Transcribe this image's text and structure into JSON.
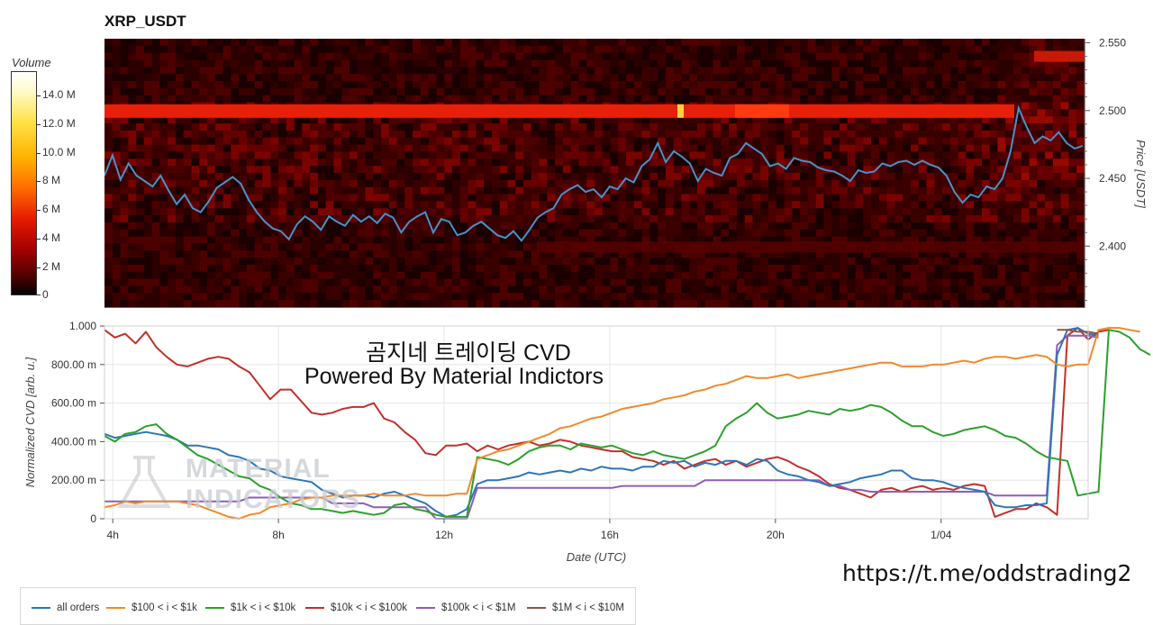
{
  "chart_data": [
    {
      "type": "heatmap",
      "title": "XRP_USDT",
      "colorbar": {
        "label": "Volume",
        "ticks": [
          "14.0 M",
          "12.0 M",
          "10.0 M",
          "8 M",
          "6 M",
          "4 M",
          "2 M",
          "0"
        ],
        "range": [
          0,
          16000000
        ]
      },
      "price_axis": {
        "label": "Price [USDT]",
        "ticks": [
          "2.550",
          "2.500",
          "2.450",
          "2.400"
        ],
        "tick_values": [
          2.55,
          2.5,
          2.45,
          2.4
        ],
        "range": [
          2.355,
          2.553
        ]
      },
      "price_line": {
        "color": "#4a90c8",
        "values": [
          2.452,
          2.467,
          2.449,
          2.461,
          2.452,
          2.448,
          2.444,
          2.452,
          2.441,
          2.431,
          2.438,
          2.428,
          2.425,
          2.433,
          2.443,
          2.447,
          2.451,
          2.446,
          2.434,
          2.425,
          2.418,
          2.413,
          2.411,
          2.405,
          2.416,
          2.422,
          2.418,
          2.412,
          2.422,
          2.418,
          2.415,
          2.423,
          2.418,
          2.422,
          2.417,
          2.424,
          2.421,
          2.41,
          2.418,
          2.422,
          2.425,
          2.41,
          2.42,
          2.418,
          2.408,
          2.41,
          2.415,
          2.418,
          2.413,
          2.408,
          2.406,
          2.411,
          2.404,
          2.412,
          2.421,
          2.425,
          2.428,
          2.438,
          2.442,
          2.445,
          2.44,
          2.442,
          2.436,
          2.444,
          2.442,
          2.45,
          2.447,
          2.459,
          2.464,
          2.476,
          2.462,
          2.47,
          2.466,
          2.461,
          2.448,
          2.457,
          2.454,
          2.452,
          2.465,
          2.468,
          2.476,
          2.472,
          2.468,
          2.459,
          2.461,
          2.457,
          2.465,
          2.463,
          2.462,
          2.458,
          2.456,
          2.455,
          2.452,
          2.448,
          2.456,
          2.454,
          2.455,
          2.461,
          2.459,
          2.462,
          2.463,
          2.46,
          2.463,
          2.46,
          2.458,
          2.452,
          2.44,
          2.432,
          2.438,
          2.436,
          2.444,
          2.442,
          2.45,
          2.47,
          2.502,
          2.488,
          2.476,
          2.481,
          2.478,
          2.484,
          2.476,
          2.472,
          2.474
        ]
      }
    },
    {
      "type": "line",
      "x_axis": {
        "label": "Date (UTC)",
        "ticks": [
          "4h",
          "8h",
          "12h",
          "16h",
          "20h",
          "1/04"
        ],
        "tick_hours": [
          4,
          8,
          12,
          16,
          20,
          24
        ],
        "range_hours": [
          3.8,
          27.55
        ]
      },
      "y_axis": {
        "label": "Normalized CVD [arb. u.]",
        "ticks": [
          "0",
          "200.00 m",
          "400.00 m",
          "600.00 m",
          "800.00 m",
          "1.000"
        ],
        "range": [
          0,
          1.0
        ]
      },
      "grid": true,
      "x_start_hour": 3.8,
      "x_step_hours": 0.25,
      "series": [
        {
          "name": "all orders",
          "color": "#2e75b6",
          "values": [
            0.44,
            0.42,
            0.43,
            0.44,
            0.45,
            0.44,
            0.43,
            0.41,
            0.38,
            0.38,
            0.37,
            0.36,
            0.33,
            0.32,
            0.3,
            0.26,
            0.25,
            0.22,
            0.21,
            0.2,
            0.19,
            0.15,
            0.13,
            0.11,
            0.12,
            0.12,
            0.11,
            0.13,
            0.14,
            0.12,
            0.1,
            0.08,
            0.04,
            0.01,
            0.02,
            0.05,
            0.18,
            0.2,
            0.2,
            0.21,
            0.22,
            0.24,
            0.23,
            0.24,
            0.25,
            0.24,
            0.26,
            0.25,
            0.27,
            0.26,
            0.26,
            0.25,
            0.27,
            0.27,
            0.3,
            0.29,
            0.3,
            0.27,
            0.29,
            0.28,
            0.3,
            0.3,
            0.28,
            0.31,
            0.3,
            0.25,
            0.23,
            0.22,
            0.2,
            0.19,
            0.17,
            0.18,
            0.19,
            0.21,
            0.22,
            0.23,
            0.25,
            0.25,
            0.21,
            0.2,
            0.2,
            0.19,
            0.17,
            0.16,
            0.15,
            0.14,
            0.07,
            0.06,
            0.06,
            0.07,
            0.07,
            0.08,
            0.85,
            0.98,
            0.99,
            0.96,
            0.95
          ]
        },
        {
          "name": "$100 < i < $1k",
          "color": "#f0892a",
          "values": [
            0.06,
            0.07,
            0.09,
            0.08,
            0.09,
            0.09,
            0.09,
            0.09,
            0.08,
            0.07,
            0.05,
            0.03,
            0.01,
            0.0,
            0.02,
            0.03,
            0.06,
            0.07,
            0.08,
            0.1,
            0.11,
            0.11,
            0.12,
            0.12,
            0.12,
            0.12,
            0.13,
            0.12,
            0.12,
            0.12,
            0.13,
            0.12,
            0.12,
            0.12,
            0.13,
            0.13,
            0.31,
            0.33,
            0.35,
            0.36,
            0.38,
            0.4,
            0.42,
            0.44,
            0.47,
            0.48,
            0.5,
            0.52,
            0.53,
            0.55,
            0.57,
            0.58,
            0.59,
            0.6,
            0.62,
            0.63,
            0.64,
            0.66,
            0.67,
            0.69,
            0.7,
            0.72,
            0.74,
            0.73,
            0.73,
            0.74,
            0.75,
            0.73,
            0.74,
            0.75,
            0.76,
            0.77,
            0.78,
            0.79,
            0.8,
            0.81,
            0.81,
            0.79,
            0.79,
            0.79,
            0.8,
            0.8,
            0.81,
            0.82,
            0.81,
            0.83,
            0.84,
            0.84,
            0.83,
            0.84,
            0.85,
            0.84,
            0.8,
            0.79,
            0.8,
            0.8,
            0.98,
            0.99,
            0.99,
            0.98,
            0.97
          ]
        },
        {
          "name": "$1k < i < $10k",
          "color": "#2ca02c",
          "values": [
            0.43,
            0.4,
            0.44,
            0.45,
            0.48,
            0.49,
            0.44,
            0.41,
            0.37,
            0.33,
            0.31,
            0.28,
            0.25,
            0.22,
            0.21,
            0.17,
            0.15,
            0.11,
            0.08,
            0.07,
            0.05,
            0.05,
            0.04,
            0.03,
            0.04,
            0.03,
            0.02,
            0.03,
            0.07,
            0.08,
            0.05,
            0.04,
            0.02,
            0.01,
            0.01,
            0.01,
            0.32,
            0.31,
            0.3,
            0.28,
            0.31,
            0.35,
            0.37,
            0.38,
            0.38,
            0.36,
            0.39,
            0.38,
            0.37,
            0.38,
            0.36,
            0.34,
            0.33,
            0.35,
            0.33,
            0.32,
            0.31,
            0.33,
            0.35,
            0.38,
            0.48,
            0.52,
            0.55,
            0.6,
            0.55,
            0.52,
            0.53,
            0.54,
            0.56,
            0.55,
            0.54,
            0.57,
            0.56,
            0.57,
            0.59,
            0.58,
            0.55,
            0.51,
            0.48,
            0.48,
            0.45,
            0.43,
            0.44,
            0.46,
            0.47,
            0.48,
            0.46,
            0.43,
            0.42,
            0.39,
            0.35,
            0.32,
            0.31,
            0.3,
            0.12,
            0.13,
            0.14,
            0.98,
            0.97,
            0.94,
            0.88,
            0.85
          ]
        },
        {
          "name": "$10k < i < $100k",
          "color": "#c0302a",
          "values": [
            0.98,
            0.94,
            0.96,
            0.91,
            0.97,
            0.89,
            0.84,
            0.8,
            0.79,
            0.81,
            0.83,
            0.84,
            0.83,
            0.79,
            0.76,
            0.69,
            0.62,
            0.67,
            0.67,
            0.61,
            0.55,
            0.54,
            0.55,
            0.57,
            0.58,
            0.58,
            0.6,
            0.52,
            0.5,
            0.45,
            0.41,
            0.34,
            0.33,
            0.38,
            0.38,
            0.39,
            0.35,
            0.38,
            0.36,
            0.38,
            0.39,
            0.4,
            0.38,
            0.39,
            0.41,
            0.4,
            0.38,
            0.37,
            0.36,
            0.35,
            0.35,
            0.32,
            0.31,
            0.3,
            0.28,
            0.3,
            0.26,
            0.28,
            0.3,
            0.31,
            0.28,
            0.3,
            0.27,
            0.29,
            0.31,
            0.32,
            0.3,
            0.27,
            0.25,
            0.22,
            0.18,
            0.16,
            0.15,
            0.13,
            0.11,
            0.15,
            0.16,
            0.14,
            0.16,
            0.17,
            0.15,
            0.16,
            0.15,
            0.17,
            0.18,
            0.17,
            0.01,
            0.03,
            0.05,
            0.05,
            0.08,
            0.06,
            0.02,
            0.95,
            0.99,
            0.93,
            0.97,
            0.98
          ]
        },
        {
          "name": "$100k < i < $1M",
          "color": "#8c5fb6",
          "values": [
            0.09,
            0.09,
            0.09,
            0.09,
            0.09,
            0.09,
            0.09,
            0.09,
            0.09,
            0.09,
            0.09,
            0.09,
            0.09,
            0.09,
            0.11,
            0.11,
            0.11,
            0.11,
            0.11,
            0.11,
            0.11,
            0.11,
            0.08,
            0.08,
            0.08,
            0.08,
            0.06,
            0.06,
            0.06,
            0.06,
            0.06,
            0.06,
            0.0,
            0.0,
            0.0,
            0.0,
            0.16,
            0.16,
            0.16,
            0.16,
            0.16,
            0.16,
            0.16,
            0.16,
            0.16,
            0.16,
            0.16,
            0.16,
            0.16,
            0.16,
            0.17,
            0.17,
            0.17,
            0.17,
            0.17,
            0.17,
            0.17,
            0.17,
            0.2,
            0.2,
            0.2,
            0.2,
            0.2,
            0.2,
            0.2,
            0.2,
            0.2,
            0.2,
            0.2,
            0.2,
            0.17,
            0.17,
            0.15,
            0.15,
            0.14,
            0.14,
            0.14,
            0.14,
            0.14,
            0.14,
            0.14,
            0.14,
            0.14,
            0.14,
            0.14,
            0.14,
            0.12,
            0.12,
            0.12,
            0.12,
            0.12,
            0.12,
            0.9,
            0.95,
            0.95,
            0.95,
            0.94
          ]
        },
        {
          "name": "$1M < i < $10M",
          "color": "#8c564b",
          "values": [
            0.98,
            0.98,
            0.97,
            0.97,
            0.96
          ]
        }
      ]
    }
  ],
  "overlay": {
    "korean_line": "곰지네 트레이딩 CVD",
    "powered_line": "Powered By Material Indictors",
    "url": "https://t.me/oddstrading2",
    "logo_lines": [
      "MATERIAL",
      "INDICATORS"
    ]
  }
}
